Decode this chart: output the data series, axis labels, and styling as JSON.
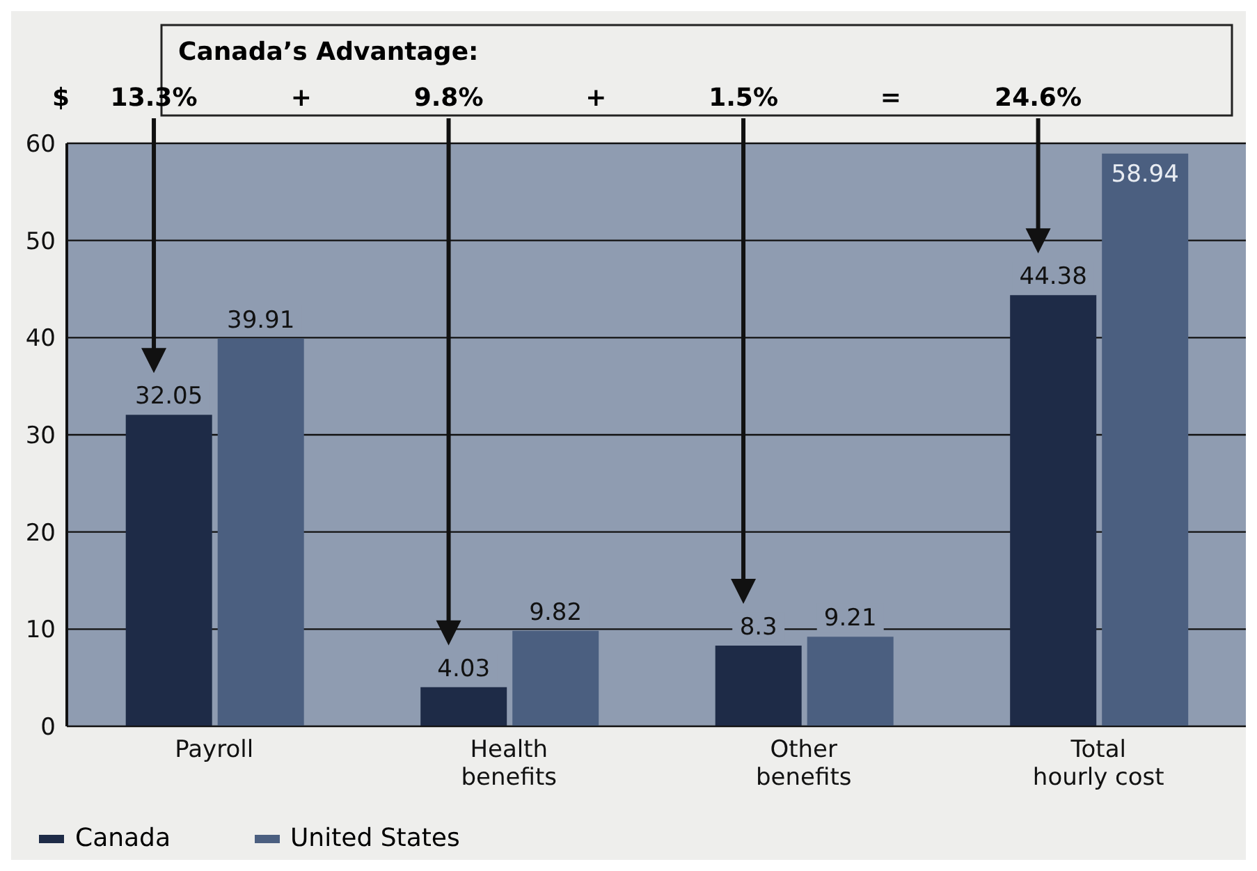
{
  "chart_data": {
    "type": "bar",
    "ylabel": "$",
    "categories": [
      "Payroll",
      "Health\nbenefits",
      "Other\nbenefits",
      "Total\nhourly cost"
    ],
    "series": [
      {
        "name": "Canada",
        "color": "#1e2b47",
        "values": [
          32.05,
          4.03,
          8.3,
          44.38
        ]
      },
      {
        "name": "United States",
        "color": "#4b5f80",
        "values": [
          39.91,
          9.82,
          9.21,
          58.94
        ]
      }
    ],
    "ylim": [
      0,
      60
    ],
    "yticks": [
      0,
      10,
      20,
      30,
      40,
      50,
      60
    ],
    "grid": "y",
    "legend": "bottom left",
    "data_labels": true,
    "annotations": [
      "Canada’s Advantage:",
      "13.3%",
      "+",
      "9.8%",
      "+",
      "1.5%",
      "=",
      "24.6%"
    ]
  }
}
